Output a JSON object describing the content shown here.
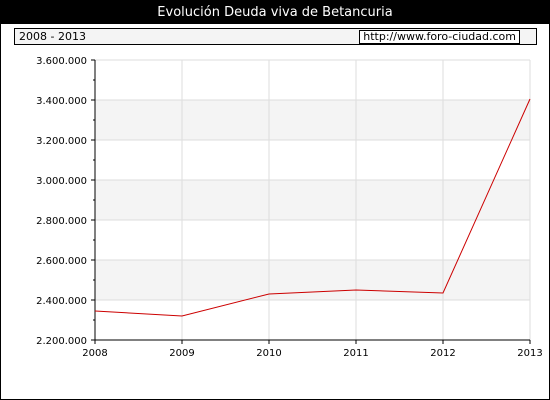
{
  "window": {
    "title": "Evolución Deuda viva de Betancuria"
  },
  "info_bar": {
    "period": "2008 - 2013",
    "source_url": "http://www.foro-ciudad.com"
  },
  "colors": {
    "title_bg": "#000000",
    "title_text": "#ffffff",
    "plot_band": "#f4f4f4",
    "grid": "#dddddd",
    "line": "#cc0000"
  },
  "chart_data": {
    "type": "line",
    "title": "Evolución Deuda viva de Betancuria",
    "x": [
      2008,
      2009,
      2010,
      2011,
      2012,
      2013
    ],
    "x_tick_labels": [
      "2008",
      "2009",
      "2010",
      "2011",
      "2012",
      "2013"
    ],
    "series": [
      {
        "values": [
          2345000,
          2320000,
          2430000,
          2450000,
          2435000,
          3405000
        ]
      }
    ],
    "ylim": [
      2200000,
      3600000
    ],
    "y_ticks": [
      2200000,
      2400000,
      2600000,
      2800000,
      3000000,
      3200000,
      3400000,
      3600000
    ],
    "y_tick_labels": [
      "2.200.000",
      "2.400.000",
      "2.600.000",
      "2.800.000",
      "3.000.000",
      "3.200.000",
      "3.400.000",
      "3.600.000"
    ],
    "xlabel": "",
    "ylabel": "",
    "grid": true,
    "legend": "none"
  }
}
